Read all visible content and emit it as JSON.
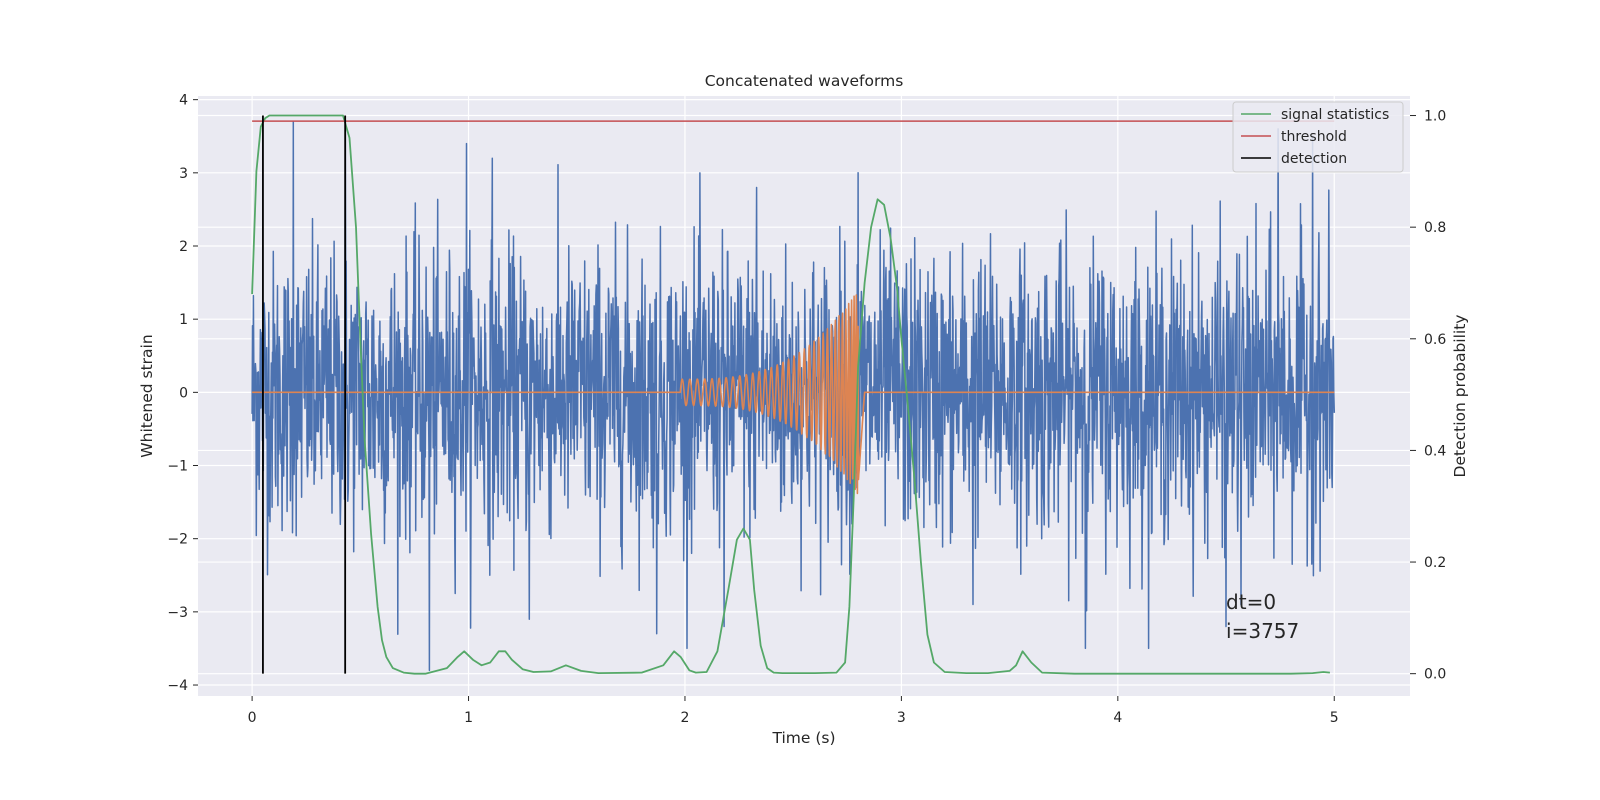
{
  "chart_data": {
    "type": "line",
    "title": "Concatenated waveforms",
    "xlabel": "Time (s)",
    "ylabel": "Whitened strain",
    "y2label": "Detection probability",
    "xlim": [
      -0.25,
      5.35
    ],
    "ylim": [
      -4.15,
      4.05
    ],
    "y2lim": [
      -0.04,
      1.035
    ],
    "xticks": [
      0,
      1,
      2,
      3,
      4,
      5
    ],
    "xtick_labels": [
      "0",
      "1",
      "2",
      "3",
      "4",
      "5"
    ],
    "yticks": [
      -4,
      -3,
      -2,
      -1,
      0,
      1,
      2,
      3,
      4
    ],
    "ytick_labels": [
      "−4",
      "−3",
      "−2",
      "−1",
      "0",
      "1",
      "2",
      "3",
      "4"
    ],
    "y2ticks": [
      0.0,
      0.2,
      0.4,
      0.6,
      0.8,
      1.0
    ],
    "y2tick_labels": [
      "0.0",
      "0.2",
      "0.4",
      "0.6",
      "0.8",
      "1.0"
    ],
    "grid": true,
    "legend_position": "top-right",
    "colors": {
      "noise": "#4c72b0",
      "chirp": "#dd8452",
      "signal_statistics": "#55a868",
      "threshold": "#c44e52",
      "detection": "#000000",
      "background": "#eaeaf2",
      "grid": "#ffffff"
    },
    "series": [
      {
        "name": "",
        "axis": "left",
        "kind": "whitened-noise",
        "x_range": [
          0,
          5
        ],
        "std": 0.95,
        "spikes": [
          [
            0.19,
            3.7
          ],
          [
            0.43,
            3.6
          ],
          [
            0.99,
            3.4
          ],
          [
            1.11,
            3.2
          ],
          [
            2.33,
            2.8
          ],
          [
            2.8,
            3.0
          ],
          [
            4.74,
            3.6
          ],
          [
            4.9,
            3.5
          ],
          [
            0.82,
            -3.8
          ],
          [
            1.28,
            -3.1
          ],
          [
            1.87,
            -3.3
          ],
          [
            2.18,
            -3.2
          ],
          [
            3.33,
            -2.9
          ],
          [
            3.85,
            -3.5
          ],
          [
            4.5,
            -3.2
          ],
          [
            4.57,
            -2.9
          ]
        ]
      },
      {
        "name": "",
        "axis": "left",
        "kind": "chirp",
        "x_range": [
          0,
          5
        ],
        "chirp_start": 1.98,
        "merger": 2.8,
        "start_amplitude": 0.18,
        "peak_amplitude": 1.4
      },
      {
        "name": "signal statistics",
        "axis": "right",
        "x": [
          0.0,
          0.02,
          0.04,
          0.06,
          0.08,
          0.1,
          0.2,
          0.3,
          0.38,
          0.42,
          0.45,
          0.48,
          0.5,
          0.52,
          0.55,
          0.58,
          0.6,
          0.62,
          0.65,
          0.7,
          0.75,
          0.8,
          0.9,
          0.95,
          0.98,
          1.02,
          1.06,
          1.1,
          1.14,
          1.17,
          1.2,
          1.25,
          1.3,
          1.38,
          1.45,
          1.52,
          1.6,
          1.8,
          1.9,
          1.95,
          1.98,
          2.02,
          2.05,
          2.1,
          2.15,
          2.2,
          2.24,
          2.27,
          2.3,
          2.32,
          2.35,
          2.38,
          2.41,
          2.45,
          2.5,
          2.6,
          2.7,
          2.74,
          2.76,
          2.78,
          2.8,
          2.83,
          2.86,
          2.89,
          2.92,
          2.95,
          2.98,
          3.0,
          3.03,
          3.06,
          3.09,
          3.12,
          3.15,
          3.2,
          3.3,
          3.4,
          3.5,
          3.53,
          3.56,
          3.6,
          3.65,
          3.8,
          4.0,
          4.5,
          4.8,
          4.9,
          4.95,
          4.98
        ],
        "y": [
          0.68,
          0.9,
          0.98,
          0.995,
          1.0,
          1.0,
          1.0,
          1.0,
          1.0,
          1.0,
          0.96,
          0.8,
          0.6,
          0.42,
          0.25,
          0.12,
          0.06,
          0.03,
          0.01,
          0.002,
          0.0,
          0.0,
          0.01,
          0.03,
          0.04,
          0.025,
          0.015,
          0.02,
          0.04,
          0.04,
          0.025,
          0.008,
          0.003,
          0.004,
          0.015,
          0.005,
          0.001,
          0.002,
          0.015,
          0.04,
          0.03,
          0.006,
          0.002,
          0.003,
          0.04,
          0.15,
          0.24,
          0.26,
          0.24,
          0.15,
          0.05,
          0.01,
          0.002,
          0.001,
          0.001,
          0.001,
          0.002,
          0.02,
          0.12,
          0.32,
          0.55,
          0.7,
          0.8,
          0.85,
          0.84,
          0.78,
          0.69,
          0.6,
          0.48,
          0.35,
          0.2,
          0.07,
          0.02,
          0.003,
          0.001,
          0.001,
          0.005,
          0.015,
          0.04,
          0.02,
          0.002,
          0.0,
          0.0,
          0.0,
          0.0,
          0.001,
          0.003,
          0.002
        ]
      },
      {
        "name": "threshold",
        "axis": "right",
        "x": [
          0.0,
          5.0
        ],
        "y": [
          0.99,
          0.99
        ]
      },
      {
        "name": "detection",
        "axis": "right",
        "segments": [
          {
            "x": 0.05,
            "y": [
              0.0,
              1.0
            ]
          },
          {
            "x": 0.43,
            "y": [
              0.0,
              1.0
            ]
          }
        ]
      }
    ],
    "annotations": [
      {
        "text": "dt=0",
        "x": 4.5,
        "y": -2.96
      },
      {
        "text": "i=3757",
        "x": 4.5,
        "y": -3.36
      }
    ]
  }
}
